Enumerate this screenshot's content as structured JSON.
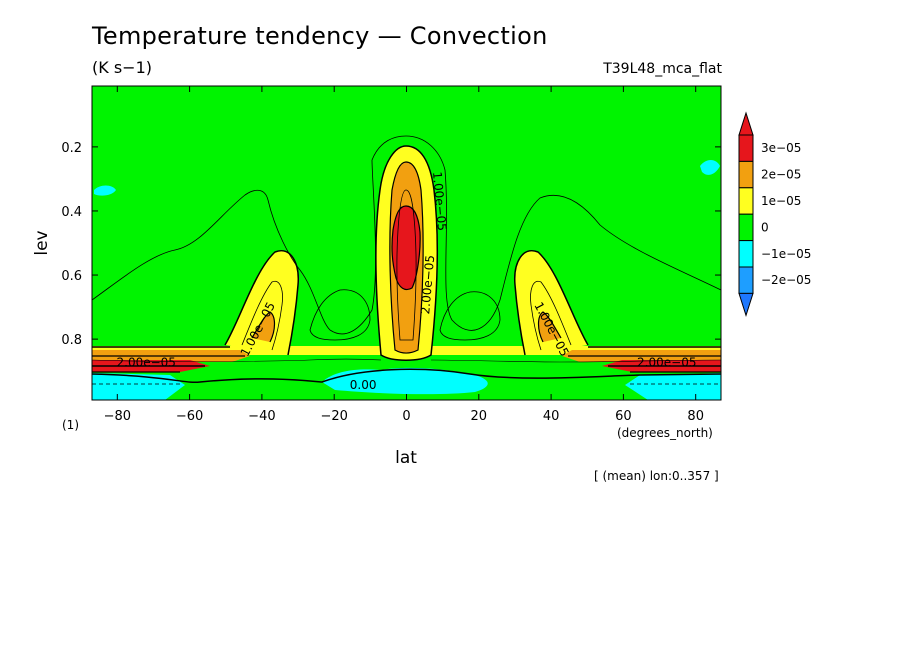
{
  "header": {
    "title": "Temperature tendency — Convection",
    "units": "(K s−1)",
    "run": "T39L48_mca_flat"
  },
  "note": "[ (mean) lon:0..357 ]",
  "chart_data": {
    "type": "heatmap",
    "xlabel": "lat",
    "xunit": "(degrees_north)",
    "ylabel": "lev",
    "yunit": "(1)",
    "xlim": [
      -87,
      87
    ],
    "ylim": [
      0.01,
      0.99
    ],
    "y_inverted": true,
    "xticks": [
      -80,
      -60,
      -40,
      -20,
      0,
      20,
      40,
      60,
      80
    ],
    "xtick_labels": [
      "−80",
      "−60",
      "−40",
      "−20",
      "0",
      "20",
      "40",
      "60",
      "80"
    ],
    "yticks": [
      0.2,
      0.4,
      0.6,
      0.8
    ],
    "ytick_labels": [
      "0.2",
      "0.4",
      "0.6",
      "0.8"
    ],
    "contour_labels": [
      {
        "text": "1.00e−05",
        "lat": 9,
        "lev": 0.37,
        "angle": 85
      },
      {
        "text": "2.00e−05",
        "lat": 6,
        "lev": 0.63,
        "angle": -85
      },
      {
        "text": "1.00e−05",
        "lat": -41,
        "lev": 0.77,
        "angle": -62
      },
      {
        "text": "2.00e−05",
        "lat": -72,
        "lev": 0.875,
        "angle": 0
      },
      {
        "text": "1.00e−05",
        "lat": 40,
        "lev": 0.77,
        "angle": 62
      },
      {
        "text": "2.00e−05",
        "lat": 72,
        "lev": 0.875,
        "angle": 0
      },
      {
        "text": "0.00",
        "lat": -12,
        "lev": 0.945,
        "angle": 0
      }
    ],
    "colorbar": {
      "labels": [
        "3e−05",
        "2e−05",
        "1e−05",
        "0",
        "−1e−05",
        "−2e−05"
      ],
      "colors": [
        "#e6161c",
        "#f2a010",
        "#ffff20",
        "#00f400",
        "#00ffff",
        "#1e9eff"
      ],
      "top_extend_color": "#e6161c",
      "bottom_extend_color": "#1e78ff"
    },
    "fill_colors": {
      "negative_strong": "#1e9eff",
      "negative": "#00ffff",
      "zero_band": "#00f400",
      "positive_1": "#ffff20",
      "positive_2": "#f2a010",
      "positive_3": "#e6161c"
    }
  }
}
